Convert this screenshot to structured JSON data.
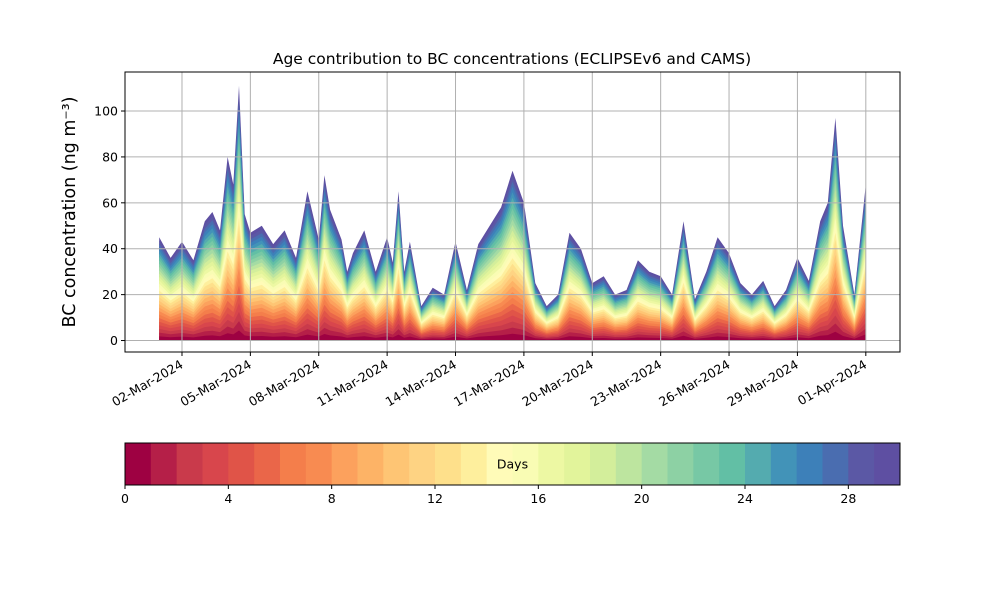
{
  "chart_data": {
    "type": "area",
    "title": "Age contribution to BC concentrations (ECLIPSEv6 and CAMS)",
    "ylabel": "BC concentration (ng m⁻³)",
    "xlabel": "",
    "ylim": [
      -5,
      117
    ],
    "yticks": [
      0,
      20,
      40,
      60,
      80,
      100
    ],
    "grid": true,
    "xlim": [
      "2024-02-28T12:00",
      "2024-04-02T12:00"
    ],
    "xticks": [
      "02-Mar-2024",
      "05-Mar-2024",
      "08-Mar-2024",
      "11-Mar-2024",
      "14-Mar-2024",
      "17-Mar-2024",
      "20-Mar-2024",
      "23-Mar-2024",
      "26-Mar-2024",
      "29-Mar-2024",
      "01-Apr-2024"
    ],
    "stacking": "layers stacked by age class 0–30 days; outer envelope = total BC",
    "total_series": {
      "name": "total",
      "x": [
        "2024-03-01T00:00",
        "2024-03-01T12:00",
        "2024-03-02T00:00",
        "2024-03-02T12:00",
        "2024-03-03T00:00",
        "2024-03-03T08:00",
        "2024-03-03T16:00",
        "2024-03-04T00:00",
        "2024-03-04T06:00",
        "2024-03-04T12:00",
        "2024-03-04T18:00",
        "2024-03-05T00:00",
        "2024-03-05T12:00",
        "2024-03-06T00:00",
        "2024-03-06T12:00",
        "2024-03-07T00:00",
        "2024-03-07T12:00",
        "2024-03-08T00:00",
        "2024-03-08T06:00",
        "2024-03-08T12:00",
        "2024-03-09T00:00",
        "2024-03-09T06:00",
        "2024-03-09T12:00",
        "2024-03-10T00:00",
        "2024-03-10T12:00",
        "2024-03-11T00:00",
        "2024-03-11T06:00",
        "2024-03-11T12:00",
        "2024-03-11T18:00",
        "2024-03-12T00:00",
        "2024-03-12T12:00",
        "2024-03-13T00:00",
        "2024-03-13T12:00",
        "2024-03-14T00:00",
        "2024-03-14T12:00",
        "2024-03-15T00:00",
        "2024-03-15T12:00",
        "2024-03-16T00:00",
        "2024-03-16T12:00",
        "2024-03-17T00:00",
        "2024-03-17T12:00",
        "2024-03-18T00:00",
        "2024-03-18T12:00",
        "2024-03-19T00:00",
        "2024-03-19T12:00",
        "2024-03-20T00:00",
        "2024-03-20T12:00",
        "2024-03-21T00:00",
        "2024-03-21T12:00",
        "2024-03-22T00:00",
        "2024-03-22T12:00",
        "2024-03-23T00:00",
        "2024-03-23T12:00",
        "2024-03-24T00:00",
        "2024-03-24T12:00",
        "2024-03-25T00:00",
        "2024-03-25T12:00",
        "2024-03-26T00:00",
        "2024-03-26T12:00",
        "2024-03-27T00:00",
        "2024-03-27T12:00",
        "2024-03-28T00:00",
        "2024-03-28T12:00",
        "2024-03-29T00:00",
        "2024-03-29T12:00",
        "2024-03-30T00:00",
        "2024-03-30T08:00",
        "2024-03-30T16:00",
        "2024-03-31T00:00",
        "2024-03-31T12:00",
        "2024-04-01T00:00"
      ],
      "values": [
        45,
        36,
        43,
        35,
        52,
        56,
        48,
        80,
        68,
        111,
        55,
        47,
        50,
        42,
        48,
        36,
        65,
        44,
        72,
        57,
        44,
        30,
        38,
        48,
        30,
        45,
        34,
        65,
        30,
        43,
        15,
        23,
        20,
        43,
        22,
        42,
        50,
        58,
        74,
        60,
        25,
        15,
        20,
        47,
        40,
        25,
        28,
        20,
        22,
        35,
        30,
        28,
        20,
        52,
        18,
        30,
        45,
        38,
        25,
        20,
        26,
        15,
        22,
        36,
        26,
        52,
        60,
        97,
        50,
        20,
        68
      ]
    },
    "colorbar": {
      "label": "Days",
      "range": [
        0,
        30
      ],
      "ticks": [
        0,
        4,
        8,
        12,
        16,
        20,
        24,
        28
      ],
      "step": 1,
      "colormap": "Spectral",
      "colors": [
        "#9e0142",
        "#b51f48",
        "#c93a4b",
        "#d8464c",
        "#e05448",
        "#ea6649",
        "#f47e4b",
        "#f88b51",
        "#fca15d",
        "#fdb366",
        "#fec574",
        "#fed383",
        "#fee08b",
        "#feef9d",
        "#fffbb8",
        "#f9fcb4",
        "#edf8a3",
        "#e2f49b",
        "#d3ee9b",
        "#bde59f",
        "#a4dba4",
        "#8dd1a4",
        "#77c8a5",
        "#62bfa5",
        "#54abaf",
        "#4293b8",
        "#3d80b9",
        "#4a6db0",
        "#5b58a5",
        "#5e4fa2"
      ]
    }
  }
}
